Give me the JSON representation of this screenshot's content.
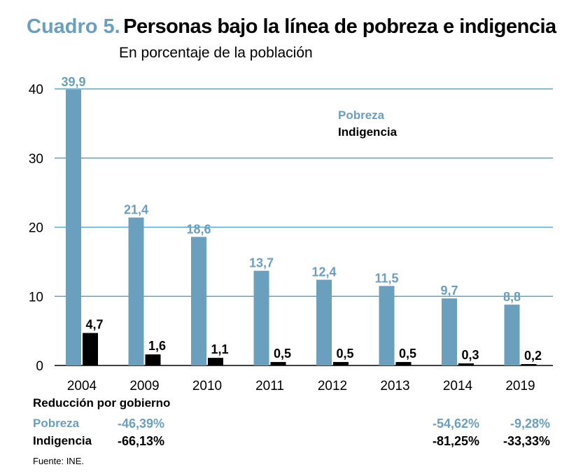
{
  "title": {
    "prefix": "Cuadro 5.",
    "main": "Personas bajo la línea de pobreza e indigencia"
  },
  "subtitle": "En porcentaje de la población",
  "colors": {
    "pobreza": "#6a9fbd",
    "indigencia": "#000000",
    "grid": "#5ba7cc"
  },
  "chart_data": {
    "type": "bar",
    "title": "Personas bajo la línea de pobreza e indigencia",
    "ylabel": "En porcentaje de la población",
    "xlabel": "",
    "categories": [
      "2004",
      "2009",
      "2010",
      "2011",
      "2012",
      "2013",
      "2014",
      "2019"
    ],
    "ylim": [
      0,
      40
    ],
    "yticks": [
      0,
      10,
      20,
      30,
      40
    ],
    "series": [
      {
        "name": "Pobreza",
        "values": [
          39.9,
          21.4,
          18.6,
          13.7,
          12.4,
          11.5,
          9.7,
          8.8
        ],
        "labels": [
          "39,9",
          "21,4",
          "18,6",
          "13,7",
          "12,4",
          "11,5",
          "9,7",
          "8,8"
        ]
      },
      {
        "name": "Indigencia",
        "values": [
          4.7,
          1.6,
          1.1,
          0.5,
          0.5,
          0.5,
          0.3,
          0.2
        ],
        "labels": [
          "4,7",
          "1,6",
          "1,1",
          "0,5",
          "0,5",
          "0,5",
          "0,3",
          "0,2"
        ]
      }
    ],
    "legend": [
      "Pobreza",
      "Indigencia"
    ],
    "legend_position": "top-center",
    "grid": true
  },
  "reduction": {
    "heading": "Reducción por gobierno",
    "pobreza_label": "Pobreza",
    "indigencia_label": "Indigencia",
    "pobreza": [
      "-46,39%",
      "-54,62%",
      "-9,28%"
    ],
    "indigencia": [
      "-66,13%",
      "-81,25%",
      "-33,33%"
    ]
  },
  "source": "Fuente: INE."
}
